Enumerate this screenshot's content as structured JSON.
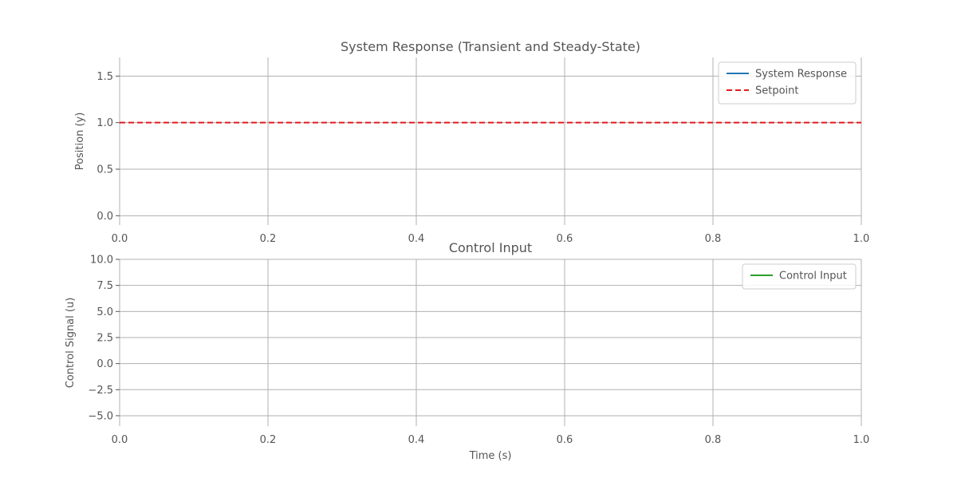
{
  "chart_data": [
    {
      "type": "line",
      "title": "System Response (Transient and Steady-State)",
      "xlabel": "",
      "ylabel": "Position (y)",
      "xlim": [
        0,
        1.0
      ],
      "ylim": [
        -0.1,
        1.7
      ],
      "xticks": [
        0.0,
        0.2,
        0.4,
        0.6,
        0.8,
        1.0
      ],
      "xtick_labels": [
        "0.0",
        "0.2",
        "0.4",
        "0.6",
        "0.8",
        "1.0"
      ],
      "yticks": [
        0.0,
        0.5,
        1.0,
        1.5
      ],
      "ytick_labels": [
        "0.0",
        "0.5",
        "1.0",
        "1.5"
      ],
      "grid": true,
      "legend_position": "top-right",
      "series": [
        {
          "name": "System Response",
          "color": "#1f77b4",
          "style": "solid",
          "x": [],
          "y": []
        },
        {
          "name": "Setpoint",
          "color": "#e31a1c",
          "style": "dashed",
          "x": [
            0.0,
            1.0
          ],
          "y": [
            1.0,
            1.0
          ]
        }
      ]
    },
    {
      "type": "line",
      "title": "Control Input",
      "xlabel": "Time (s)",
      "ylabel": "Control Signal (u)",
      "xlim": [
        0,
        1.0
      ],
      "ylim": [
        -6.0,
        10.0
      ],
      "xticks": [
        0.0,
        0.2,
        0.4,
        0.6,
        0.8,
        1.0
      ],
      "xtick_labels": [
        "0.0",
        "0.2",
        "0.4",
        "0.6",
        "0.8",
        "1.0"
      ],
      "yticks": [
        -5.0,
        -2.5,
        0.0,
        2.5,
        5.0,
        7.5,
        10.0
      ],
      "ytick_labels": [
        "−5.0",
        "−2.5",
        "0.0",
        "2.5",
        "5.0",
        "7.5",
        "10.0"
      ],
      "grid": true,
      "legend_position": "top-right",
      "series": [
        {
          "name": "Control Input",
          "color": "#2ca02c",
          "style": "solid",
          "x": [],
          "y": []
        }
      ]
    }
  ]
}
